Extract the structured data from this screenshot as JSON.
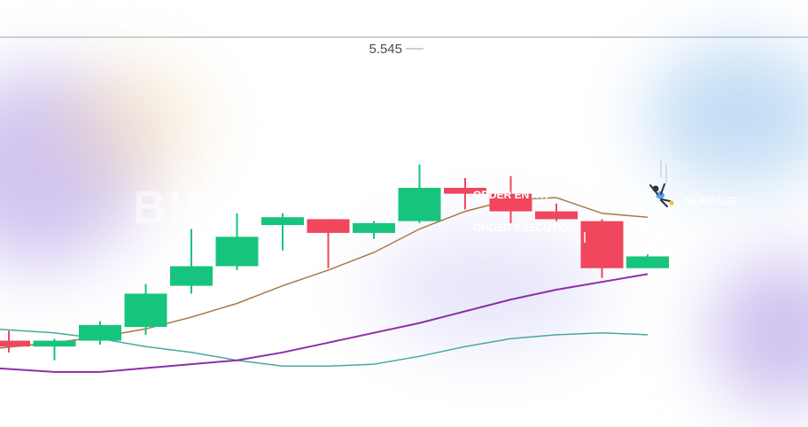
{
  "chart_data": {
    "type": "candlestick",
    "ylim": [
      4.0,
      5.7
    ],
    "max_label": "5.545",
    "candles": [
      {
        "o": 4.21,
        "h": 4.26,
        "l": 4.15,
        "c": 4.18,
        "dir": "down"
      },
      {
        "o": 4.18,
        "h": 4.22,
        "l": 4.11,
        "c": 4.21,
        "dir": "up"
      },
      {
        "o": 4.21,
        "h": 4.31,
        "l": 4.19,
        "c": 4.29,
        "dir": "up"
      },
      {
        "o": 4.28,
        "h": 4.5,
        "l": 4.24,
        "c": 4.45,
        "dir": "up"
      },
      {
        "o": 4.49,
        "h": 4.78,
        "l": 4.45,
        "c": 4.59,
        "dir": "up"
      },
      {
        "o": 4.59,
        "h": 4.86,
        "l": 4.57,
        "c": 4.74,
        "dir": "up"
      },
      {
        "o": 4.8,
        "h": 4.86,
        "l": 4.67,
        "c": 4.84,
        "dir": "up"
      },
      {
        "o": 4.83,
        "h": 4.82,
        "l": 4.58,
        "c": 4.76,
        "dir": "down"
      },
      {
        "o": 4.76,
        "h": 4.82,
        "l": 4.73,
        "c": 4.81,
        "dir": "up"
      },
      {
        "o": 4.82,
        "h": 5.11,
        "l": 4.81,
        "c": 4.99,
        "dir": "up"
      },
      {
        "o": 4.99,
        "h": 5.04,
        "l": 4.88,
        "c": 4.96,
        "dir": "down"
      },
      {
        "o": 4.96,
        "h": 5.05,
        "l": 4.81,
        "c": 4.87,
        "dir": "down"
      },
      {
        "o": 4.87,
        "h": 4.91,
        "l": 4.82,
        "c": 4.83,
        "dir": "down"
      },
      {
        "o": 4.82,
        "h": 4.83,
        "l": 4.53,
        "c": 4.58,
        "dir": "down"
      },
      {
        "o": 4.58,
        "h": 4.65,
        "l": 4.58,
        "c": 4.64,
        "dir": "up"
      }
    ],
    "series": [
      {
        "type": "line",
        "values": [
          4.17,
          4.2,
          4.23,
          4.27,
          4.33,
          4.4,
          4.49,
          4.57,
          4.66,
          4.78,
          4.87,
          4.93,
          4.94,
          4.86,
          4.84
        ]
      },
      {
        "type": "line",
        "values": [
          4.27,
          4.25,
          4.22,
          4.18,
          4.15,
          4.11,
          4.08,
          4.08,
          4.09,
          4.13,
          4.18,
          4.22,
          4.24,
          4.25,
          4.24
        ]
      },
      {
        "type": "line",
        "values": [
          4.07,
          4.05,
          4.05,
          4.07,
          4.09,
          4.11,
          4.15,
          4.2,
          4.25,
          4.3,
          4.36,
          4.42,
          4.47,
          4.51,
          4.55
        ]
      }
    ],
    "annotations": [
      "ORDER ENTRY",
      "ORDER EXECUTION",
      "SLIPPAGE"
    ],
    "watermark": "BINANCE"
  },
  "colors": {
    "up": "#17c47e",
    "down": "#f0465e",
    "ma_short": "#a87a43",
    "ma_mid": "#4aa8a0",
    "ma_long": "#8d2fa8",
    "top_rule": "#9aa0a6",
    "label": "#444a55"
  },
  "icons": [
    "falling-person-icon"
  ]
}
